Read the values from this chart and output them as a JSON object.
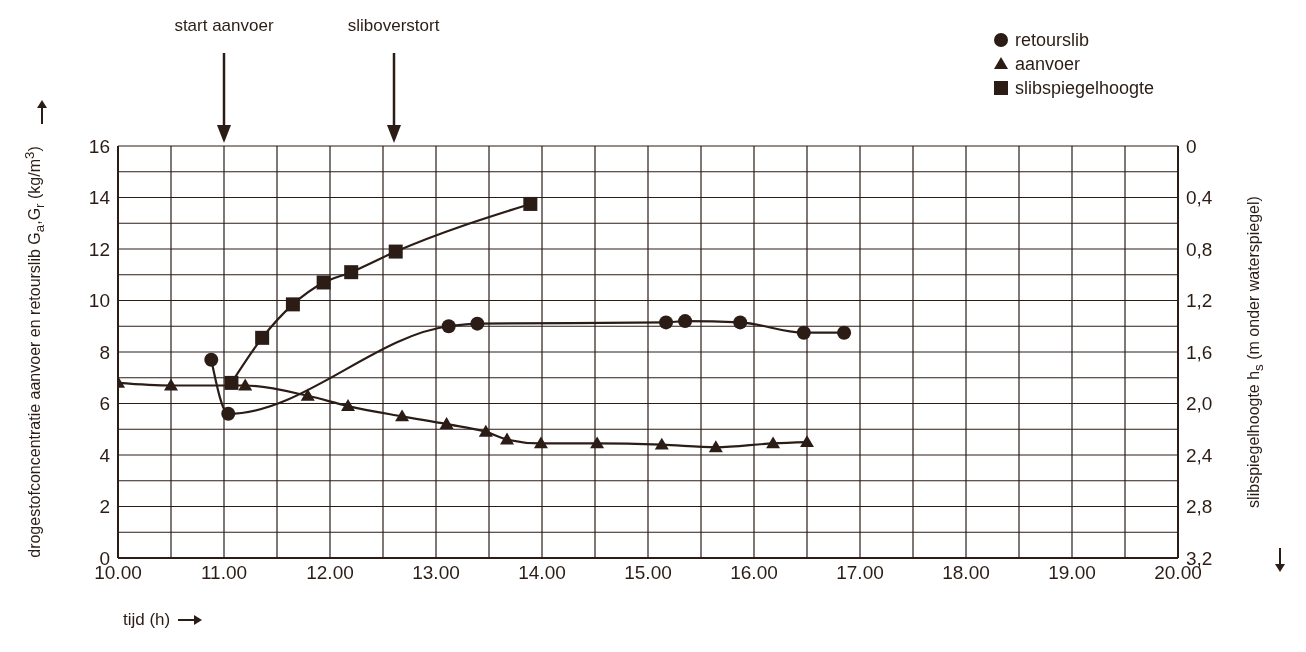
{
  "chart_data": {
    "type": "line",
    "xlabel": "tijd (h)",
    "ylabel": "drogestofconcentratie aanvoer en retourslib G$_{a}$,G$_{r}$ (kg/m$^{3}$)",
    "y2label": "slibspiegelhoogte h$_{s}$ (m onder waterspiegel)",
    "ref_lines": [
      {
        "axis": "x",
        "value": 11.0,
        "label": "start aanvoer"
      },
      {
        "axis": "x",
        "value": 12.6,
        "label": "sliboverstort"
      }
    ],
    "xlim": [
      10,
      20
    ],
    "xticks": [
      {
        "value": 10,
        "label": "10.00"
      },
      {
        "value": 10.5,
        "label": null
      },
      {
        "value": 11,
        "label": "11.00"
      },
      {
        "value": 11.5,
        "label": null
      },
      {
        "value": 12,
        "label": "12.00"
      },
      {
        "value": 12.5,
        "label": null
      },
      {
        "value": 13,
        "label": "13.00"
      },
      {
        "value": 13.5,
        "label": null
      },
      {
        "value": 14,
        "label": "14.00"
      },
      {
        "value": 14.5,
        "label": null
      },
      {
        "value": 15,
        "label": "15.00"
      },
      {
        "value": 15.5,
        "label": null
      },
      {
        "value": 16,
        "label": "16.00"
      },
      {
        "value": 16.5,
        "label": null
      },
      {
        "value": 17,
        "label": "17.00"
      },
      {
        "value": 17.5,
        "label": null
      },
      {
        "value": 18,
        "label": "18.00"
      },
      {
        "value": 18.5,
        "label": null
      },
      {
        "value": 19,
        "label": "19.00"
      },
      {
        "value": 19.5,
        "label": null
      },
      {
        "value": 20,
        "label": "20.00"
      }
    ],
    "ylim": [
      0,
      16
    ],
    "yticks": [
      0,
      {
        "value": 1,
        "label": null
      },
      2,
      {
        "value": 3,
        "label": null
      },
      4,
      {
        "value": 5,
        "label": null
      },
      6,
      {
        "value": 7,
        "label": null
      },
      8,
      {
        "value": 9,
        "label": null
      },
      10,
      {
        "value": 11,
        "label": null
      },
      12,
      {
        "value": 13,
        "label": null
      },
      14,
      {
        "value": 15,
        "label": null
      },
      16
    ],
    "y2lim": [
      3.2,
      0
    ],
    "y2ticks": [
      {
        "value": 0,
        "label": "0"
      },
      {
        "value": 0.4,
        "label": "0,4"
      },
      {
        "value": 0.8,
        "label": "0,8"
      },
      {
        "value": 1.2,
        "label": "1,2"
      },
      {
        "value": 1.6,
        "label": "1,6"
      },
      {
        "value": 2.0,
        "label": "2,0"
      },
      {
        "value": 2.4,
        "label": "2,4"
      },
      {
        "value": 2.8,
        "label": "2,8"
      },
      {
        "value": 3.2,
        "label": "3,2"
      }
    ],
    "grid": true,
    "legend": "top right",
    "line_style": "solid",
    "series": [
      {
        "name": "retourslib",
        "color": "#2b1d16",
        "marker": "circle",
        "x": [
          10.88,
          11.04,
          13.12,
          13.39,
          15.17,
          15.35,
          15.87,
          16.47,
          16.85
        ],
        "values": [
          7.7,
          5.6,
          9.0,
          9.1,
          9.15,
          9.2,
          9.15,
          8.75,
          8.75
        ]
      },
      {
        "name": "aanvoer",
        "color": "#2b1d16",
        "marker": "triangle",
        "x": [
          10.0,
          10.5,
          11.2,
          11.79,
          12.17,
          12.68,
          13.1,
          13.47,
          13.67,
          13.99,
          14.52,
          15.13,
          15.64,
          16.18,
          16.5
        ],
        "values": [
          6.8,
          6.7,
          6.7,
          6.3,
          5.9,
          5.5,
          5.2,
          4.9,
          4.6,
          4.45,
          4.45,
          4.4,
          4.3,
          4.45,
          4.5
        ]
      },
      {
        "name": "slibspiegelhoogte",
        "color": "#2b1d16",
        "marker": "square",
        "axis": "y2",
        "x": [
          11.07,
          11.36,
          11.65,
          11.94,
          12.2,
          12.62,
          13.89
        ],
        "values": [
          1.84,
          1.49,
          1.23,
          1.06,
          0.98,
          0.82,
          0.45
        ]
      }
    ]
  }
}
